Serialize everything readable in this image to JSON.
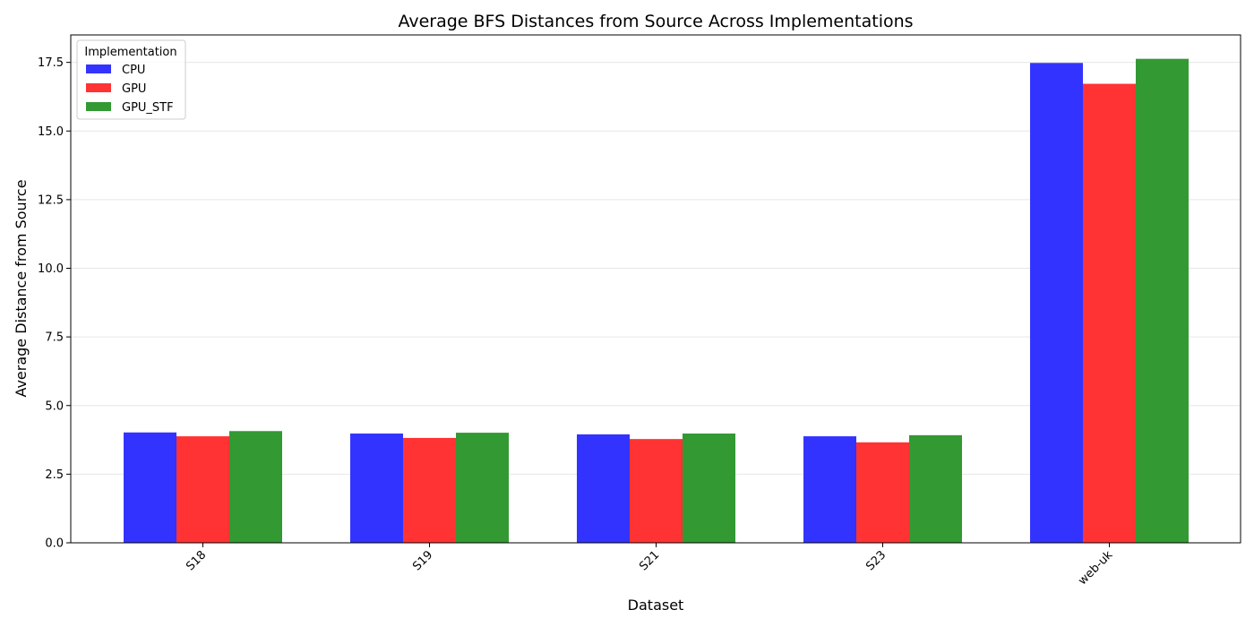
{
  "chart_data": {
    "type": "bar",
    "title": "Average BFS Distances from Source Across Implementations",
    "xlabel": "Dataset",
    "ylabel": "Average Distance from Source",
    "categories": [
      "S18",
      "S19",
      "S21",
      "S23",
      "web-uk"
    ],
    "series": [
      {
        "name": "CPU",
        "color": "#3333ff",
        "values": [
          4.02,
          3.98,
          3.95,
          3.88,
          17.48
        ]
      },
      {
        "name": "GPU",
        "color": "#ff3333",
        "values": [
          3.88,
          3.82,
          3.78,
          3.66,
          16.72
        ]
      },
      {
        "name": "GPU_STF",
        "color": "#339933",
        "values": [
          4.07,
          4.01,
          3.98,
          3.92,
          17.63
        ]
      }
    ],
    "ylim": [
      0,
      18.5
    ],
    "yticks": [
      "0.0",
      "2.5",
      "5.0",
      "7.5",
      "10.0",
      "12.5",
      "15.0",
      "17.5"
    ],
    "grid": "y",
    "legend": {
      "title": "Implementation",
      "placement": "top-left"
    }
  }
}
